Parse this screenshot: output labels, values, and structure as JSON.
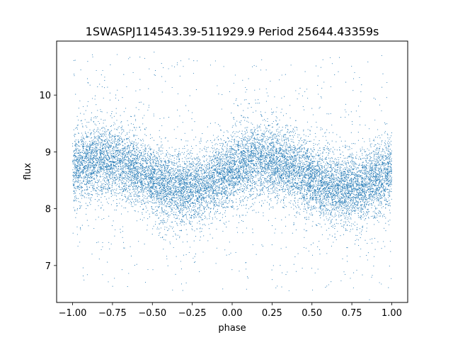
{
  "chart_data": {
    "type": "scatter",
    "title": "1SWASPJ114543.39-511929.9 Period 25644.43359s",
    "xlabel": "phase",
    "ylabel": "flux",
    "xlim": [
      -1.1,
      1.1
    ],
    "ylim": [
      6.35,
      10.95
    ],
    "x_ticks": [
      -1.0,
      -0.75,
      -0.5,
      -0.25,
      0.0,
      0.25,
      0.5,
      0.75,
      1.0
    ],
    "x_tick_labels": [
      "−1.00",
      "−0.75",
      "−0.50",
      "−0.25",
      "0.00",
      "0.25",
      "0.50",
      "0.75",
      "1.00"
    ],
    "y_ticks": [
      7,
      8,
      9,
      10
    ],
    "y_tick_labels": [
      "7",
      "8",
      "9",
      "10"
    ],
    "grid": false,
    "legend": "none",
    "marker_color": "#1f77b4",
    "phase_range": [
      -1.0,
      1.0
    ],
    "point_count": 14000,
    "flux_mean": 8.6,
    "flux_amplitude": 0.26,
    "flux_peak_phase": -0.8,
    "flux_min_phase": -0.3,
    "flux_scatter": 0.3,
    "flux_outlier_range": [
      6.55,
      10.75
    ]
  }
}
